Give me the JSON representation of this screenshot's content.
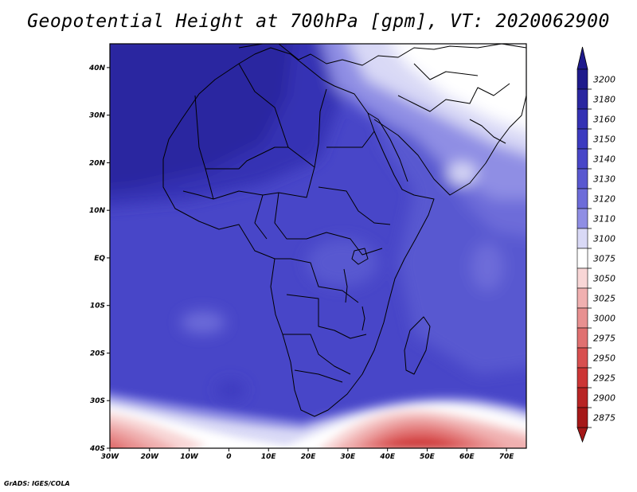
{
  "title": "Geopotential Height at 700hPa [gpm], VT: 2020062900",
  "credit": "GrADS: IGES/COLA",
  "map": {
    "projection": "latlon",
    "lon_range": [
      -30,
      75
    ],
    "lat_range": [
      -40,
      45
    ],
    "lon_ticks": [
      {
        "value": -30,
        "label": "30W"
      },
      {
        "value": -20,
        "label": "20W"
      },
      {
        "value": -10,
        "label": "10W"
      },
      {
        "value": 0,
        "label": "0"
      },
      {
        "value": 10,
        "label": "10E"
      },
      {
        "value": 20,
        "label": "20E"
      },
      {
        "value": 30,
        "label": "30E"
      },
      {
        "value": 40,
        "label": "40E"
      },
      {
        "value": 50,
        "label": "50E"
      },
      {
        "value": 60,
        "label": "60E"
      },
      {
        "value": 70,
        "label": "70E"
      }
    ],
    "lat_ticks": [
      {
        "value": 40,
        "label": "40N"
      },
      {
        "value": 30,
        "label": "30N"
      },
      {
        "value": 20,
        "label": "20N"
      },
      {
        "value": 10,
        "label": "10N"
      },
      {
        "value": 0,
        "label": "EQ"
      },
      {
        "value": -10,
        "label": "10S"
      },
      {
        "value": -20,
        "label": "20S"
      },
      {
        "value": -30,
        "label": "30S"
      },
      {
        "value": -40,
        "label": "40S"
      }
    ]
  },
  "colorbar": {
    "levels": [
      {
        "label": "3200",
        "color": "#1e1a8c"
      },
      {
        "label": "3180",
        "color": "#2a26a0"
      },
      {
        "label": "3160",
        "color": "#3431b4"
      },
      {
        "label": "3150",
        "color": "#3c3bc0"
      },
      {
        "label": "3140",
        "color": "#4846c8"
      },
      {
        "label": "3130",
        "color": "#5958d0"
      },
      {
        "label": "3120",
        "color": "#6d6cd9"
      },
      {
        "label": "3110",
        "color": "#8f8ee4"
      },
      {
        "label": "3100",
        "color": "#d9d9f6"
      },
      {
        "label": "3075",
        "color": "#ffffff"
      },
      {
        "label": "3050",
        "color": "#f8d6d6"
      },
      {
        "label": "3025",
        "color": "#f0b0b0"
      },
      {
        "label": "3000",
        "color": "#e89090"
      },
      {
        "label": "2975",
        "color": "#e07070"
      },
      {
        "label": "2950",
        "color": "#d84f4f"
      },
      {
        "label": "2925",
        "color": "#cc3535"
      },
      {
        "label": "2900",
        "color": "#b82424"
      },
      {
        "label": "2875",
        "color": "#a51818"
      }
    ],
    "top_arrow_color": "#1e1a8c",
    "bottom_arrow_color": "#a51818"
  }
}
